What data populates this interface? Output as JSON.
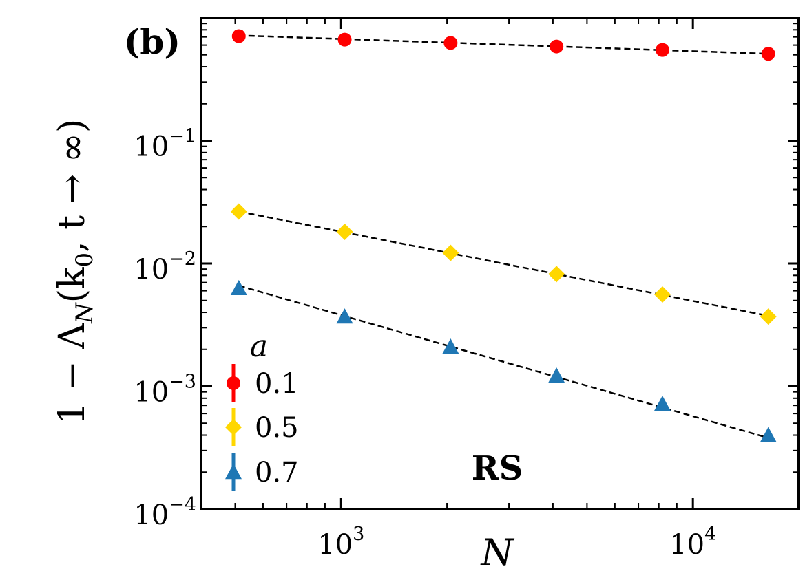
{
  "chart_data": {
    "type": "scatter",
    "panel_label": "(b)",
    "annotation": "RS",
    "xlabel": "N",
    "ylabel": "1 − Λ_N(k_0, t → ∞)",
    "ylabel_parts": {
      "pre": "1 − Λ",
      "sub1": "N",
      "mid": "(k",
      "sub2": "0",
      "post": ", t → ∞)"
    },
    "xscale": "log",
    "yscale": "log",
    "xlim": [
      400,
      20000
    ],
    "ylim": [
      0.0001,
      1.0
    ],
    "x_ticks": [
      {
        "value": 1000,
        "base": "10",
        "exp": "3"
      },
      {
        "value": 10000,
        "base": "10",
        "exp": "4"
      }
    ],
    "y_ticks": [
      {
        "value": 0.1,
        "base": "10",
        "exp": "−1"
      },
      {
        "value": 0.01,
        "base": "10",
        "exp": "−2"
      },
      {
        "value": 0.001,
        "base": "10",
        "exp": "−3"
      },
      {
        "value": 0.0001,
        "base": "10",
        "exp": "−4"
      }
    ],
    "legend_title": "a",
    "legend_position": "lower-left",
    "x": [
      512,
      1024,
      2048,
      4096,
      8192,
      16384
    ],
    "series": [
      {
        "name": "0.1",
        "marker": "circle",
        "color": "#ff0000",
        "values": [
          0.71,
          0.665,
          0.625,
          0.585,
          0.548,
          0.51
        ],
        "fit": [
          0.72,
          0.51
        ]
      },
      {
        "name": "0.5",
        "marker": "diamond",
        "color": "#ffd700",
        "values": [
          0.0265,
          0.0181,
          0.0122,
          0.0082,
          0.0056,
          0.0037
        ],
        "fit": [
          0.0265,
          0.00375
        ]
      },
      {
        "name": "0.7",
        "marker": "triangle",
        "color": "#1f77b4",
        "values": [
          0.0063,
          0.0037,
          0.0021,
          0.00122,
          0.00072,
          0.0004
        ],
        "fit": [
          0.0066,
          0.00038
        ]
      }
    ]
  }
}
